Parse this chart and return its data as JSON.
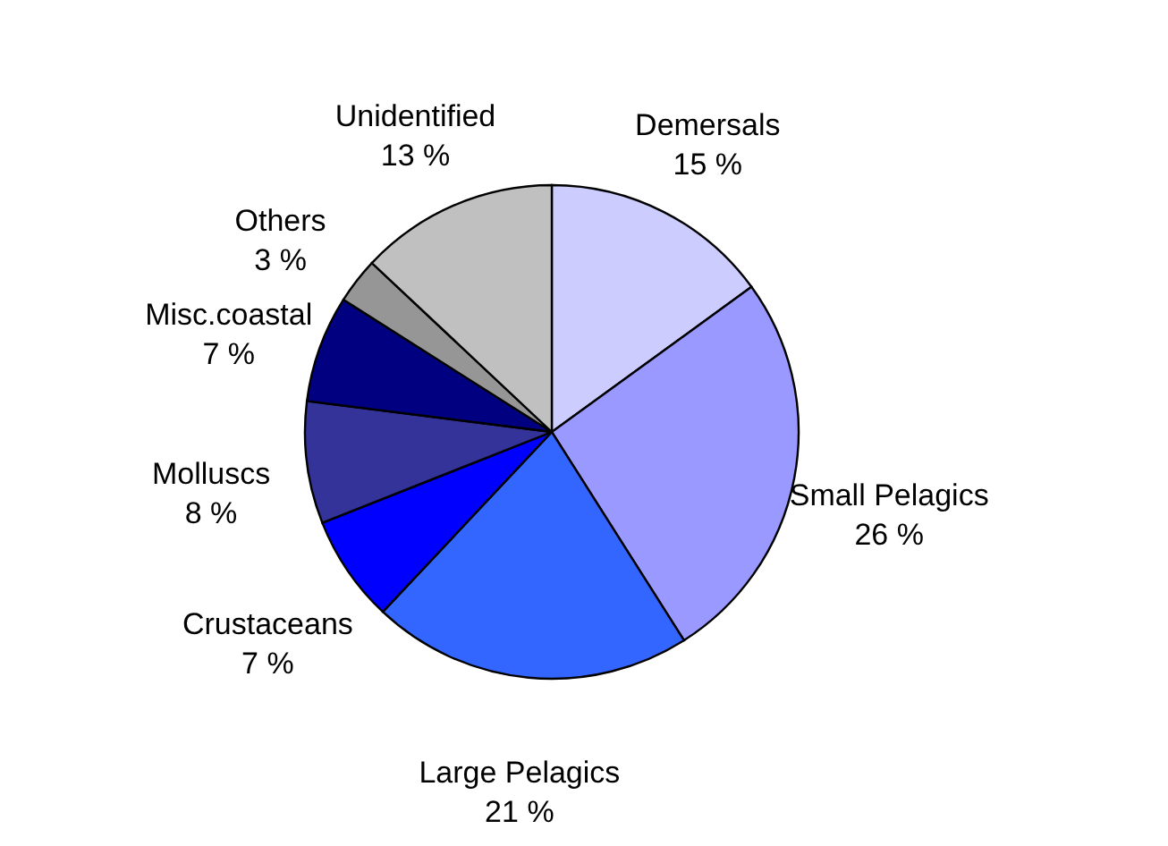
{
  "chart_data": {
    "type": "pie",
    "categories": [
      "Demersals",
      "Small Pelagics",
      "Large Pelagics",
      "Crustaceans",
      "Molluscs",
      "Misc.coastal",
      "Others",
      "Unidentified"
    ],
    "values": [
      15,
      26,
      21,
      7,
      8,
      7,
      3,
      13
    ],
    "colors": [
      "#ccccff",
      "#9999ff",
      "#3366ff",
      "#0000ff",
      "#333399",
      "#000080",
      "#969696",
      "#c0c0c0"
    ],
    "value_labels": [
      "15 %",
      "26 %",
      "21 %",
      "7 %",
      "8 %",
      "7 %",
      "3 %",
      "13 %"
    ],
    "legend": false
  }
}
